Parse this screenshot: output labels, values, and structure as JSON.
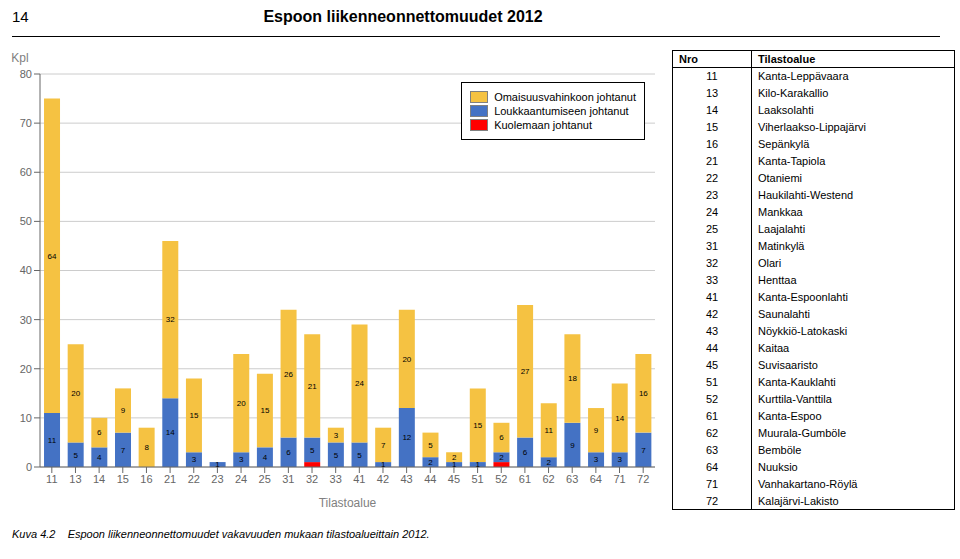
{
  "chart_data": {
    "type": "bar",
    "title": "Espoon liikenneonnettomuudet 2012",
    "stacked": true,
    "xlabel": "Tilastoalue",
    "ylabel": "Kpl",
    "categories": [
      "11",
      "13",
      "14",
      "15",
      "16",
      "21",
      "22",
      "23",
      "24",
      "25",
      "31",
      "32",
      "33",
      "41",
      "42",
      "43",
      "44",
      "45",
      "51",
      "52",
      "61",
      "62",
      "63",
      "64",
      "71",
      "72"
    ],
    "series": [
      {
        "name": "Omaisuusvahinkoon johtanut",
        "color": "#F5C242",
        "data_labels": true,
        "values": [
          64,
          20,
          6,
          9,
          8,
          32,
          15,
          0,
          20,
          15,
          26,
          21,
          3,
          24,
          7,
          20,
          5,
          2,
          15,
          6,
          27,
          11,
          18,
          9,
          14,
          16
        ]
      },
      {
        "name": "Loukkaantumiseen johtanut",
        "color": "#4472C4",
        "data_labels": true,
        "values": [
          11,
          5,
          4,
          7,
          0,
          14,
          3,
          1,
          3,
          4,
          6,
          5,
          5,
          5,
          1,
          12,
          2,
          1,
          1,
          2,
          6,
          2,
          9,
          3,
          3,
          7
        ]
      },
      {
        "name": "Kuolemaan johtanut",
        "color": "#FF0000",
        "data_labels": false,
        "values": [
          0,
          0,
          0,
          0,
          0,
          0,
          0,
          0,
          0,
          0,
          0,
          1,
          0,
          0,
          0,
          0,
          0,
          0,
          0,
          1,
          0,
          0,
          0,
          0,
          0,
          0
        ]
      }
    ],
    "ylim": [
      0,
      80
    ],
    "yticks": [
      0,
      10,
      20,
      30,
      40,
      50,
      60,
      70,
      80
    ],
    "grid": true,
    "legend": "upper right",
    "annotations": [
      "14",
      "Kuva 4.2    Espoon liikenneonnettomuudet vakavuuden mukaan tilastoalueittain 2012."
    ]
  },
  "table": {
    "header": [
      "Nro",
      "Tilastoalue"
    ],
    "rows": [
      [
        "11",
        "Kanta-Leppävaara"
      ],
      [
        "13",
        "Kilo-Karakallio"
      ],
      [
        "14",
        "Laaksolahti"
      ],
      [
        "15",
        "Viherlaakso-Lippajärvi"
      ],
      [
        "16",
        "Sepänkylä"
      ],
      [
        "21",
        "Kanta-Tapiola"
      ],
      [
        "22",
        "Otaniemi"
      ],
      [
        "23",
        "Haukilahti-Westend"
      ],
      [
        "24",
        "Mankkaa"
      ],
      [
        "25",
        "Laajalahti"
      ],
      [
        "31",
        "Matinkylä"
      ],
      [
        "32",
        "Olari"
      ],
      [
        "33",
        "Henttaa"
      ],
      [
        "41",
        "Kanta-Espoonlahti"
      ],
      [
        "42",
        "Saunalahti"
      ],
      [
        "43",
        "Nöykkiö-Latokaski"
      ],
      [
        "44",
        "Kaitaa"
      ],
      [
        "45",
        "Suvisaaristo"
      ],
      [
        "51",
        "Kanta-Kauklahti"
      ],
      [
        "52",
        "Kurttila-Vanttila"
      ],
      [
        "61",
        "Kanta-Espoo"
      ],
      [
        "62",
        "Muurala-Gumböle"
      ],
      [
        "63",
        "Bemböle"
      ],
      [
        "64",
        "Nuuksio"
      ],
      [
        "71",
        "Vanhakartano-Röylä"
      ],
      [
        "72",
        "Kalajärvi-Lakisto"
      ]
    ]
  }
}
